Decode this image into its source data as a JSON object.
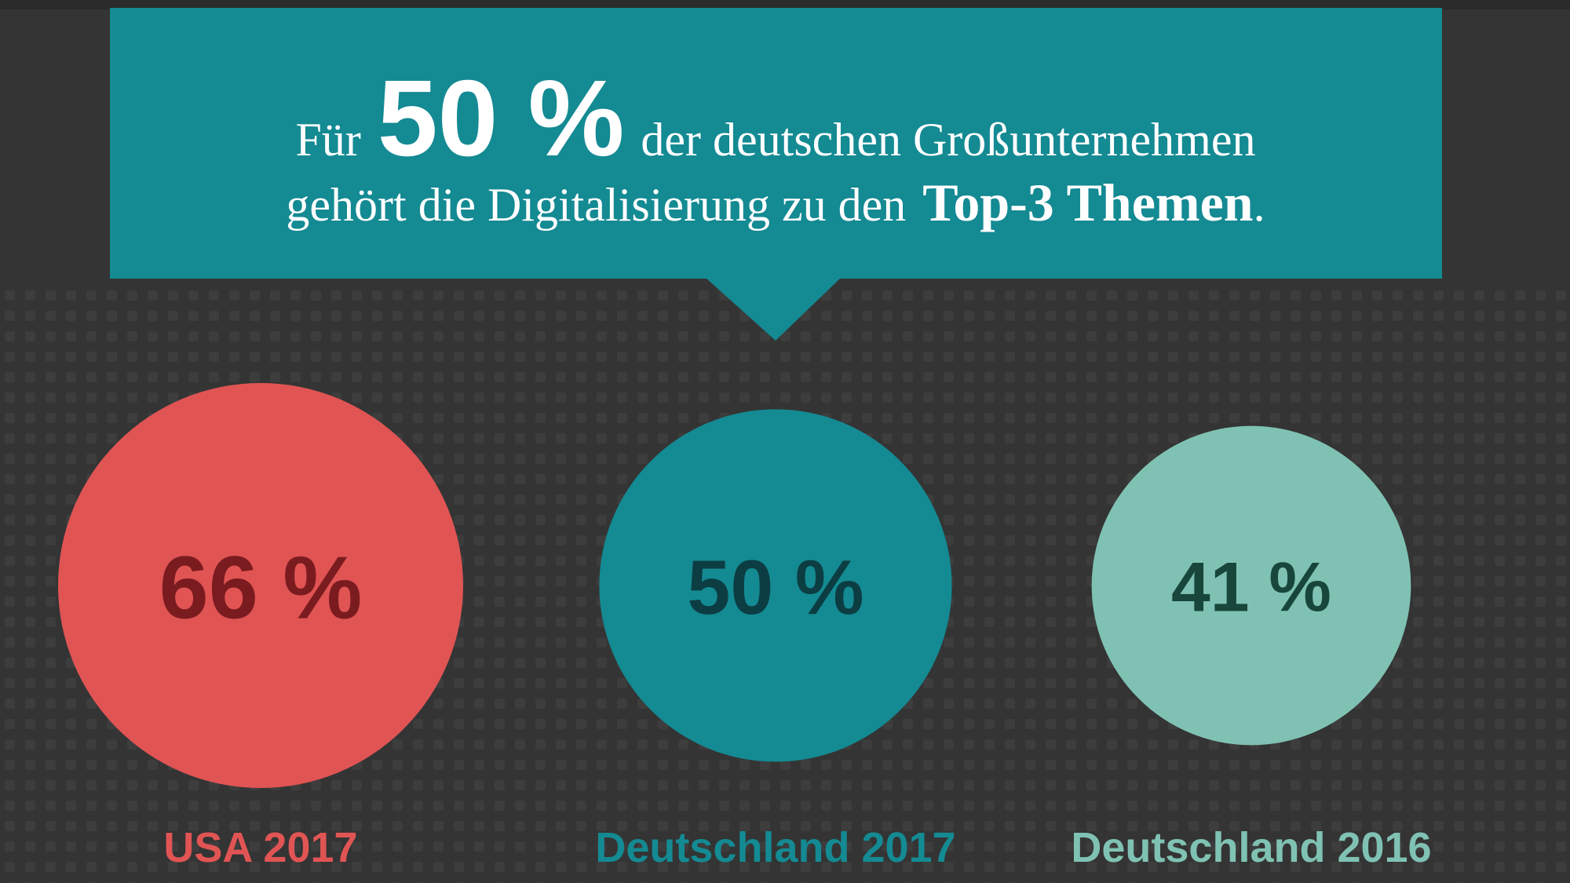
{
  "chart_data": {
    "type": "bubble",
    "annotation": {
      "prefix": "Für",
      "highlight": "50 %",
      "middle": "der deutschen Großunternehmen",
      "line2": "gehört die Digitalisierung zu den",
      "emphasis": "Top-3 Themen",
      "suffix": "."
    },
    "categories": [
      "USA 2017",
      "Deutschland 2017",
      "Deutschland 2016"
    ],
    "values": [
      66,
      50,
      41
    ],
    "value_labels": [
      "66 %",
      "50 %",
      "41 %"
    ],
    "colors": [
      "#e15454",
      "#148a93",
      "#7fc2b3"
    ],
    "label_colors": [
      "#7a1c1f",
      "#0c3d42",
      "#18463b"
    ]
  }
}
